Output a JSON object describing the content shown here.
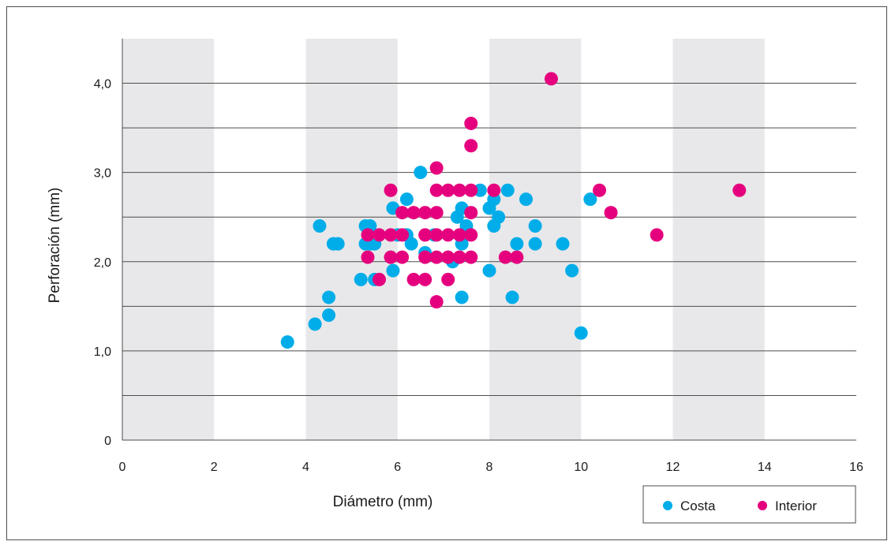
{
  "chart_data": {
    "type": "scatter",
    "title": "",
    "xlabel": "Diámetro (mm)",
    "ylabel": "Perforación (mm)",
    "xlim": [
      0,
      16
    ],
    "ylim": [
      0,
      4.5
    ],
    "x_ticks": [
      0,
      2,
      4,
      6,
      8,
      10,
      12,
      14,
      16
    ],
    "x_tick_labels": [
      "0",
      "2",
      "4",
      "6",
      "8",
      "10",
      "12",
      "14",
      "16"
    ],
    "y_ticks": [
      0,
      1,
      2,
      3,
      4
    ],
    "y_tick_labels": [
      "0",
      "1,0",
      "2,0",
      "3,0",
      "4,0"
    ],
    "y_gridlines": [
      0.5,
      1.0,
      1.5,
      2.0,
      2.5,
      3.0,
      3.5,
      4.0
    ],
    "shaded_x_bands": [
      [
        0,
        2
      ],
      [
        4,
        6
      ],
      [
        8,
        10
      ],
      [
        12,
        14
      ]
    ],
    "grid": true,
    "legend_position": "bottom-right",
    "series": [
      {
        "name": "Costa",
        "color": "#00ade9",
        "points": [
          [
            3.6,
            1.1
          ],
          [
            4.2,
            1.3
          ],
          [
            4.3,
            2.4
          ],
          [
            4.5,
            1.4
          ],
          [
            4.5,
            1.6
          ],
          [
            4.6,
            2.2
          ],
          [
            4.7,
            2.2
          ],
          [
            5.2,
            1.8
          ],
          [
            5.3,
            2.2
          ],
          [
            5.3,
            2.4
          ],
          [
            5.4,
            2.2
          ],
          [
            5.4,
            2.4
          ],
          [
            5.5,
            1.8
          ],
          [
            5.5,
            2.2
          ],
          [
            5.9,
            1.9
          ],
          [
            5.9,
            2.6
          ],
          [
            6.0,
            2.3
          ],
          [
            6.2,
            2.7
          ],
          [
            6.2,
            2.3
          ],
          [
            6.3,
            2.2
          ],
          [
            6.5,
            3.0
          ],
          [
            6.6,
            2.1
          ],
          [
            6.8,
            2.3
          ],
          [
            7.2,
            2.0
          ],
          [
            7.3,
            2.5
          ],
          [
            7.4,
            2.6
          ],
          [
            7.4,
            2.2
          ],
          [
            7.4,
            1.6
          ],
          [
            7.5,
            2.4
          ],
          [
            7.8,
            2.8
          ],
          [
            8.0,
            2.6
          ],
          [
            8.0,
            1.9
          ],
          [
            8.1,
            2.7
          ],
          [
            8.1,
            2.4
          ],
          [
            8.2,
            2.5
          ],
          [
            8.4,
            2.8
          ],
          [
            8.5,
            1.6
          ],
          [
            8.6,
            2.2
          ],
          [
            8.8,
            2.7
          ],
          [
            9.0,
            2.4
          ],
          [
            9.0,
            2.2
          ],
          [
            9.6,
            2.2
          ],
          [
            9.8,
            1.9
          ],
          [
            10.0,
            1.2
          ],
          [
            10.2,
            2.7
          ]
        ]
      },
      {
        "name": "Interior",
        "color": "#e5007e",
        "points": [
          [
            5.35,
            2.3
          ],
          [
            5.35,
            2.05
          ],
          [
            5.6,
            2.3
          ],
          [
            5.6,
            1.8
          ],
          [
            5.85,
            2.8
          ],
          [
            5.85,
            2.3
          ],
          [
            5.85,
            2.05
          ],
          [
            6.1,
            2.55
          ],
          [
            6.1,
            2.3
          ],
          [
            6.1,
            2.05
          ],
          [
            6.35,
            2.55
          ],
          [
            6.35,
            1.8
          ],
          [
            6.6,
            2.55
          ],
          [
            6.6,
            2.3
          ],
          [
            6.6,
            2.05
          ],
          [
            6.6,
            1.8
          ],
          [
            6.85,
            3.05
          ],
          [
            6.85,
            2.8
          ],
          [
            6.85,
            2.55
          ],
          [
            6.85,
            2.3
          ],
          [
            6.85,
            2.05
          ],
          [
            6.85,
            1.55
          ],
          [
            7.1,
            2.8
          ],
          [
            7.1,
            2.3
          ],
          [
            7.1,
            2.05
          ],
          [
            7.1,
            1.8
          ],
          [
            7.35,
            2.8
          ],
          [
            7.35,
            2.3
          ],
          [
            7.35,
            2.05
          ],
          [
            7.6,
            3.55
          ],
          [
            7.6,
            3.3
          ],
          [
            7.6,
            2.8
          ],
          [
            7.6,
            2.55
          ],
          [
            7.6,
            2.3
          ],
          [
            7.6,
            2.05
          ],
          [
            8.1,
            2.8
          ],
          [
            8.35,
            2.05
          ],
          [
            8.6,
            2.05
          ],
          [
            9.35,
            4.05
          ],
          [
            10.4,
            2.8
          ],
          [
            10.65,
            2.55
          ],
          [
            11.65,
            2.3
          ],
          [
            13.45,
            2.8
          ]
        ]
      }
    ]
  },
  "legend": {
    "items": [
      {
        "label": "Costa",
        "color": "#00ade9"
      },
      {
        "label": "Interior",
        "color": "#e5007e"
      }
    ]
  },
  "colors": {
    "band": "#e8e8ea",
    "grid": "#4d4d4d",
    "axis": "#4d4d4d"
  }
}
